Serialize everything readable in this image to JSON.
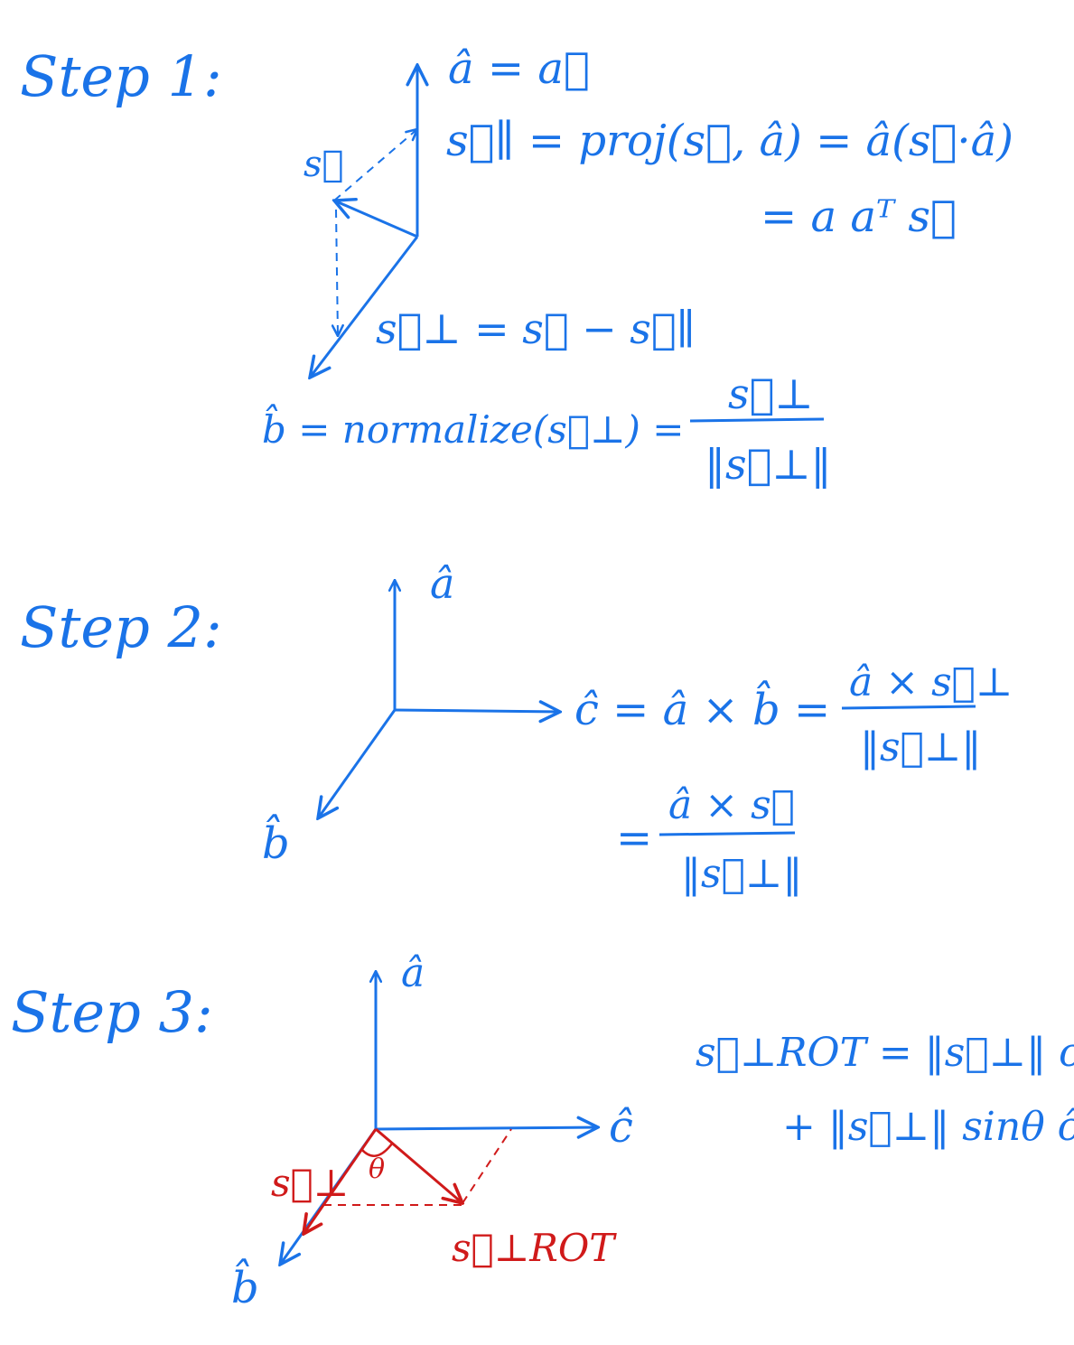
{
  "colors": {
    "ink": "#1a73e8",
    "red": "#d01a1a",
    "background": "#ffffff"
  },
  "step1": {
    "title": "Step 1:",
    "eq_a": "â = a⃗",
    "eq_s_par": "s⃗∥ = proj(s⃗, â) = â(s⃗·â)",
    "eq_s_par_2": "= a aᵀ s⃗",
    "label_s": "s⃗",
    "eq_s_perp": "s⃗⊥ = s⃗ − s⃗∥",
    "eq_b_lhs": "b̂ = normalize(s⃗⊥) =",
    "eq_b_num": "s⃗⊥",
    "eq_b_den": "‖s⃗⊥‖"
  },
  "step2": {
    "title": "Step 2:",
    "label_a": "â",
    "label_b": "b̂",
    "eq_c_lhs": "ĉ = â × b̂ =",
    "eq_c_num1": "â × s⃗⊥",
    "eq_c_den1": "‖s⃗⊥‖",
    "eq_c_eq2": "=",
    "eq_c_num2": "â × s⃗",
    "eq_c_den2": "‖s⃗⊥‖"
  },
  "step3": {
    "title": "Step 3:",
    "label_a": "â",
    "label_c": "ĉ",
    "label_b": "b̂",
    "label_s_perp": "s⃗⊥",
    "label_theta": "θ",
    "label_s_rot": "s⃗⊥ROT",
    "eq_rot_1": "s⃗⊥ROT = ‖s⃗⊥‖ cosθ b̂",
    "eq_rot_2": "+ ‖s⃗⊥‖ sinθ ĉ"
  }
}
